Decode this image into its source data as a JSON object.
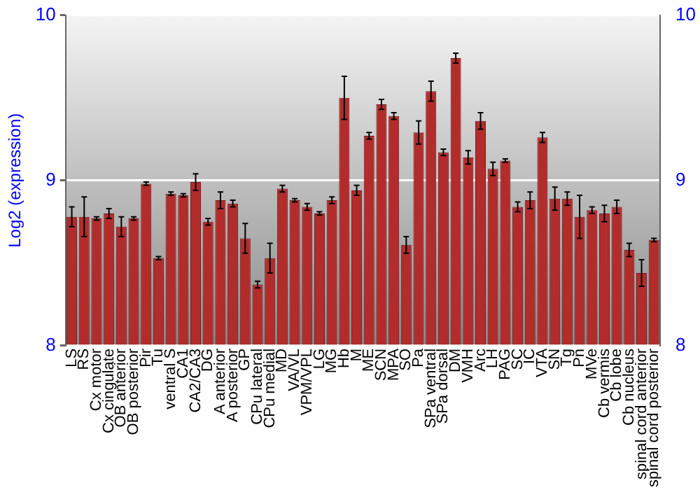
{
  "chart_data": {
    "type": "bar",
    "ylabel": "Log2 (expression)",
    "categories": [
      "LS",
      "RS",
      "Cx motor",
      "Cx cingulate",
      "OB anterior",
      "OB posterior",
      "Pir",
      "Tu",
      "ventral S",
      "CA1",
      "CA2/CA3",
      "DG",
      "A anterior",
      "A posterior",
      "GP",
      "CPu lateral",
      "CPu medial",
      "MD",
      "VA/VL",
      "VPM/VPL",
      "LG",
      "MG",
      "Hb",
      "M",
      "ME",
      "SCN",
      "MPA",
      "SO",
      "Pa",
      "SPa ventral",
      "SPa dorsal",
      "DM",
      "VMH",
      "Arc",
      "LH",
      "PAG",
      "SC",
      "IC",
      "VTA",
      "SN",
      "Tg",
      "Pn",
      "MVe",
      "Cb vermis",
      "Cb lobe",
      "Cb nucleus",
      "spinal cord anterior",
      "spinal cord posterior"
    ],
    "values": [
      8.78,
      8.78,
      8.77,
      8.8,
      8.72,
      8.77,
      8.98,
      8.53,
      8.92,
      8.91,
      8.99,
      8.75,
      8.88,
      8.86,
      8.65,
      8.37,
      8.53,
      8.95,
      8.88,
      8.84,
      8.8,
      8.88,
      9.5,
      8.94,
      9.27,
      9.46,
      9.39,
      8.61,
      9.29,
      9.54,
      9.17,
      9.74,
      9.14,
      9.36,
      9.07,
      9.12,
      8.84,
      8.88,
      9.26,
      8.89,
      8.89,
      8.78,
      8.82,
      8.8,
      8.84,
      8.58,
      8.44,
      8.64
    ],
    "errors": [
      0.06,
      0.12,
      0.01,
      0.03,
      0.06,
      0.01,
      0.01,
      0.01,
      0.01,
      0.01,
      0.05,
      0.02,
      0.05,
      0.02,
      0.09,
      0.02,
      0.09,
      0.02,
      0.01,
      0.02,
      0.01,
      0.02,
      0.13,
      0.03,
      0.02,
      0.03,
      0.02,
      0.05,
      0.07,
      0.06,
      0.02,
      0.03,
      0.04,
      0.05,
      0.04,
      0.01,
      0.03,
      0.05,
      0.03,
      0.07,
      0.04,
      0.13,
      0.02,
      0.05,
      0.04,
      0.04,
      0.08,
      0.01
    ],
    "color": "#b22c2c",
    "ylim": [
      8,
      10
    ],
    "yticks": [
      8,
      9,
      10
    ],
    "y2lim": [
      8,
      10
    ],
    "y2ticks": [
      8,
      9,
      10
    ],
    "grid": "y",
    "legend": false
  }
}
